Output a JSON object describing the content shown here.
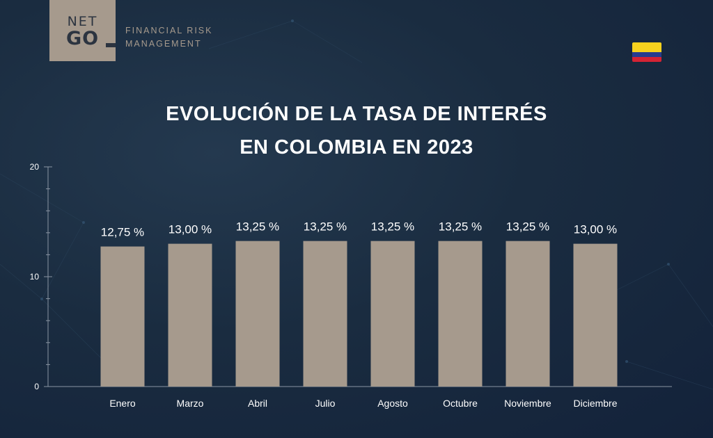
{
  "brand": {
    "logo_line1": "NET",
    "logo_line2": "GO",
    "tagline_line1": "FINANCIAL RISK",
    "tagline_line2": "MANAGEMENT"
  },
  "title_line1": "EVOLUCIÓN DE LA TASA DE INTERÉS",
  "title_line2": "EN COLOMBIA EN 2023",
  "flag_icon": "colombia-flag-icon",
  "colors": {
    "background": "#1a2c40",
    "bar": "#a69a8d",
    "text": "#ffffff",
    "axis": "#8a95a3"
  },
  "chart_data": {
    "type": "bar",
    "title": "EVOLUCIÓN DE LA TASA DE INTERÉS EN COLOMBIA EN 2023",
    "categories": [
      "Enero",
      "Marzo",
      "Abril",
      "Julio",
      "Agosto",
      "Octubre",
      "Noviembre",
      "Diciembre"
    ],
    "values": [
      12.75,
      13.0,
      13.25,
      13.25,
      13.25,
      13.25,
      13.25,
      13.0
    ],
    "data_labels": [
      "12,75 %",
      "13,00 %",
      "13,25 %",
      "13,25 %",
      "13,25 %",
      "13,25 %",
      "13,25 %",
      "13,00 %"
    ],
    "ylim": [
      0,
      20
    ],
    "yticks": [
      0,
      10,
      20
    ],
    "xlabel": "",
    "ylabel": "",
    "grid": false,
    "legend": "none"
  }
}
